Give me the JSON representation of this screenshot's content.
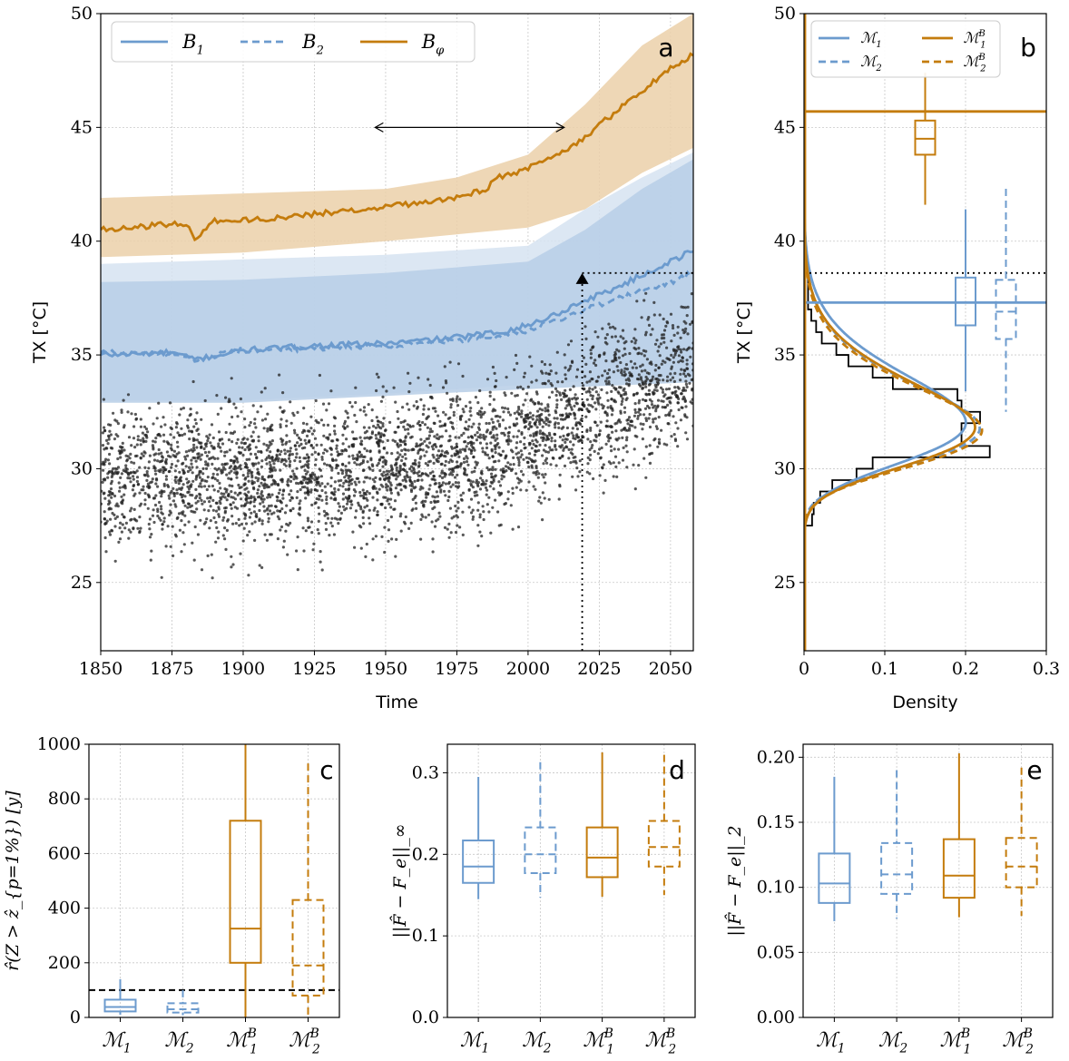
{
  "colors": {
    "blue": "#6c9bce",
    "orange": "#c47c0d",
    "blue_fill": "#b7cee6",
    "blue_fill_light": "#d6e3f1",
    "orange_fill": "#ebd0a9",
    "black": "#000000"
  },
  "chart_data": [
    {
      "id": "a",
      "type": "line",
      "panel_letter": "a",
      "xlabel": "Time",
      "ylabel": "TX [°C]",
      "xlim": [
        1850,
        2058
      ],
      "ylim": [
        22,
        50
      ],
      "xticks": [
        1850,
        1875,
        1900,
        1925,
        1950,
        1975,
        2000,
        2025,
        2050
      ],
      "yticks": [
        25,
        30,
        35,
        40,
        45,
        50
      ],
      "legend": {
        "placement": "top-left",
        "entries": [
          "B_1",
          "B_2",
          "B_φ"
        ]
      },
      "series": [
        {
          "name": "B_1",
          "style": "solid",
          "color": "blue",
          "points": [
            [
              1850,
              35.0
            ],
            [
              1875,
              35.1
            ],
            [
              1883,
              34.8
            ],
            [
              1900,
              35.2
            ],
            [
              1925,
              35.4
            ],
            [
              1950,
              35.5
            ],
            [
              1970,
              35.7
            ],
            [
              1990,
              36.0
            ],
            [
              2000,
              36.3
            ],
            [
              2010,
              36.8
            ],
            [
              2020,
              37.4
            ],
            [
              2030,
              37.9
            ],
            [
              2040,
              38.5
            ],
            [
              2050,
              39.1
            ],
            [
              2058,
              39.6
            ]
          ]
        },
        {
          "name": "B_2",
          "style": "dashed",
          "color": "blue",
          "points": [
            [
              1850,
              35.1
            ],
            [
              1875,
              35.1
            ],
            [
              1883,
              34.8
            ],
            [
              1900,
              35.2
            ],
            [
              1925,
              35.3
            ],
            [
              1950,
              35.4
            ],
            [
              1970,
              35.6
            ],
            [
              1990,
              35.8
            ],
            [
              2000,
              36.1
            ],
            [
              2010,
              36.5
            ],
            [
              2020,
              37.0
            ],
            [
              2030,
              37.4
            ],
            [
              2040,
              37.8
            ],
            [
              2050,
              38.2
            ],
            [
              2058,
              38.6
            ]
          ]
        },
        {
          "name": "B_φ",
          "style": "solid",
          "color": "orange",
          "points": [
            [
              1850,
              40.5
            ],
            [
              1870,
              40.7
            ],
            [
              1880,
              40.8
            ],
            [
              1883,
              40.0
            ],
            [
              1890,
              40.9
            ],
            [
              1900,
              40.9
            ],
            [
              1925,
              41.2
            ],
            [
              1950,
              41.5
            ],
            [
              1975,
              41.9
            ],
            [
              1985,
              42.3
            ],
            [
              1990,
              42.8
            ],
            [
              2000,
              43.2
            ],
            [
              2010,
              43.7
            ],
            [
              2020,
              44.6
            ],
            [
              2030,
              45.6
            ],
            [
              2040,
              46.6
            ],
            [
              2050,
              47.6
            ],
            [
              2058,
              48.2
            ]
          ]
        }
      ],
      "bands": [
        {
          "color": "orange_fill",
          "lower": [
            [
              1850,
              39.3
            ],
            [
              1900,
              39.5
            ],
            [
              1950,
              40.0
            ],
            [
              1975,
              40.3
            ],
            [
              2000,
              40.6
            ],
            [
              2020,
              41.4
            ],
            [
              2040,
              43.0
            ],
            [
              2058,
              44.1
            ]
          ],
          "upper": [
            [
              1850,
              41.9
            ],
            [
              1900,
              42.1
            ],
            [
              1950,
              42.3
            ],
            [
              1975,
              42.8
            ],
            [
              2000,
              43.8
            ],
            [
              2020,
              46.0
            ],
            [
              2040,
              48.6
            ],
            [
              2058,
              50.0
            ]
          ]
        },
        {
          "color": "blue_fill_light",
          "lower": [
            [
              1850,
              33.0
            ],
            [
              1900,
              33.0
            ],
            [
              1950,
              33.3
            ],
            [
              2000,
              33.7
            ],
            [
              2058,
              34.1
            ]
          ],
          "upper": [
            [
              1850,
              39.0
            ],
            [
              1900,
              39.2
            ],
            [
              1950,
              39.4
            ],
            [
              2000,
              39.8
            ],
            [
              2020,
              41.4
            ],
            [
              2040,
              42.8
            ],
            [
              2058,
              43.9
            ]
          ]
        },
        {
          "color": "blue_fill",
          "lower": [
            [
              1850,
              32.9
            ],
            [
              1900,
              32.9
            ],
            [
              1950,
              33.2
            ],
            [
              2000,
              33.5
            ],
            [
              2058,
              33.8
            ]
          ],
          "upper": [
            [
              1850,
              38.2
            ],
            [
              1900,
              38.3
            ],
            [
              1950,
              38.6
            ],
            [
              2000,
              39.1
            ],
            [
              2020,
              40.5
            ],
            [
              2040,
              42.3
            ],
            [
              2058,
              43.6
            ]
          ]
        }
      ],
      "scatter": {
        "color": "black",
        "x_range": [
          1850,
          2058
        ],
        "trend": [
          [
            1850,
            29.5
          ],
          [
            1950,
            30.0
          ],
          [
            1980,
            30.5
          ],
          [
            2000,
            31.5
          ],
          [
            2020,
            32.5
          ],
          [
            2058,
            34.5
          ]
        ],
        "spread": 2.2,
        "count": 3500
      },
      "annotations": {
        "arrow_y": 45,
        "arrow_x": [
          1946,
          2013
        ],
        "vline_x": 2019,
        "vline_y": [
          22,
          38.6
        ],
        "hline_y": 38.6,
        "hline_x": [
          2019,
          2058
        ]
      }
    },
    {
      "id": "b",
      "type": "density",
      "panel_letter": "b",
      "xlabel": "Density",
      "ylabel": "TX [°C]",
      "xlim": [
        0,
        0.3
      ],
      "ylim": [
        22,
        50
      ],
      "xticks": [
        0,
        0.1,
        0.2,
        0.3
      ],
      "xtick_labels": [
        "0",
        "0.1",
        "0.2",
        "0.3"
      ],
      "yticks": [
        25,
        30,
        35,
        40,
        45,
        50
      ],
      "legend": {
        "placement": "top-left",
        "entries": [
          "M_1",
          "M_2",
          "M_1^B",
          "M_2^B"
        ]
      },
      "histogram": [
        [
          27.5,
          28.0,
          0.01
        ],
        [
          28.0,
          28.5,
          0.012
        ],
        [
          28.5,
          29.0,
          0.02
        ],
        [
          29.0,
          29.5,
          0.035
        ],
        [
          29.5,
          30.0,
          0.065
        ],
        [
          30.0,
          30.5,
          0.085
        ],
        [
          30.5,
          31.0,
          0.23
        ],
        [
          31.0,
          31.5,
          0.195
        ],
        [
          31.5,
          32.0,
          0.195
        ],
        [
          32.0,
          32.5,
          0.218
        ],
        [
          32.5,
          33.0,
          0.195
        ],
        [
          33.0,
          33.5,
          0.19
        ],
        [
          33.5,
          34.0,
          0.11
        ],
        [
          34.0,
          34.5,
          0.085
        ],
        [
          34.5,
          35.0,
          0.055
        ],
        [
          35.0,
          35.5,
          0.04
        ],
        [
          35.5,
          36.0,
          0.022
        ],
        [
          36.0,
          36.5,
          0.015
        ],
        [
          36.5,
          37.0,
          0.009
        ],
        [
          37.0,
          38.6,
          0.005
        ]
      ],
      "densities": [
        {
          "name": "M_1",
          "color": "blue",
          "style": "solid",
          "mu": 31.8,
          "sigma": 1.85,
          "xi": -0.12
        },
        {
          "name": "M_2",
          "color": "blue",
          "style": "dashed",
          "mu": 31.6,
          "sigma": 1.7,
          "xi": -0.1
        },
        {
          "name": "M_1^B",
          "color": "orange",
          "style": "solid",
          "mu": 31.6,
          "sigma": 1.75,
          "xi": -0.12
        },
        {
          "name": "M_2^B",
          "color": "orange",
          "style": "dashed",
          "mu": 31.5,
          "sigma": 1.68,
          "xi": -0.11
        }
      ],
      "hlines": [
        {
          "y": 45.7,
          "color": "orange"
        },
        {
          "y": 37.3,
          "color": "blue"
        }
      ],
      "dotted_hline_y": 38.6,
      "boxes": [
        {
          "name": "M_1",
          "x": 0.2,
          "color": "blue",
          "style": "solid",
          "wlo": 33.4,
          "q1": 36.3,
          "med": 37.3,
          "q3": 38.4,
          "whi": 41.4
        },
        {
          "name": "M_2",
          "x": 0.25,
          "color": "blue",
          "style": "dashed",
          "wlo": 32.5,
          "q1": 35.7,
          "med": 36.9,
          "q3": 38.3,
          "whi": 42.3
        },
        {
          "name": "M_1^B",
          "x": 0.15,
          "color": "orange",
          "style": "solid",
          "wlo": 41.6,
          "q1": 43.8,
          "med": 44.5,
          "q3": 45.3,
          "whi": 47.4
        }
      ]
    },
    {
      "id": "c",
      "type": "box",
      "panel_letter": "c",
      "ylabel": "r̂(Z > ẑ_{p=1%}) [y]",
      "ylim": [
        0,
        1000
      ],
      "yticks": [
        0,
        200,
        400,
        600,
        800,
        1000
      ],
      "categories": [
        "M_1",
        "M_2",
        "M_1^B",
        "M_2^B"
      ],
      "reference_hline": 100,
      "boxes": [
        {
          "color": "blue",
          "style": "solid",
          "wlo": 10,
          "q1": 22,
          "med": 38,
          "q3": 65,
          "whi": 140
        },
        {
          "color": "blue",
          "style": "dashed",
          "wlo": 8,
          "q1": 18,
          "med": 30,
          "q3": 52,
          "whi": 100
        },
        {
          "color": "orange",
          "style": "solid",
          "wlo": 0,
          "q1": 200,
          "med": 325,
          "q3": 720,
          "whi": 1000
        },
        {
          "color": "orange",
          "style": "dashed",
          "wlo": 5,
          "q1": 80,
          "med": 190,
          "q3": 430,
          "whi": 930
        }
      ]
    },
    {
      "id": "d",
      "type": "box",
      "panel_letter": "d",
      "ylabel": "||F̂ − F_e||_∞",
      "ylim": [
        0,
        0.335
      ],
      "yticks": [
        0.0,
        0.1,
        0.2,
        0.3
      ],
      "ytick_labels": [
        "0.0",
        "0.1",
        "0.2",
        "0.3"
      ],
      "categories": [
        "M_1",
        "M_2",
        "M_1^B",
        "M_2^B"
      ],
      "boxes": [
        {
          "color": "blue",
          "style": "solid",
          "wlo": 0.145,
          "q1": 0.165,
          "med": 0.185,
          "q3": 0.217,
          "whi": 0.295
        },
        {
          "color": "blue",
          "style": "dashed",
          "wlo": 0.147,
          "q1": 0.177,
          "med": 0.2,
          "q3": 0.233,
          "whi": 0.313
        },
        {
          "color": "orange",
          "style": "solid",
          "wlo": 0.148,
          "q1": 0.172,
          "med": 0.196,
          "q3": 0.233,
          "whi": 0.325
        },
        {
          "color": "orange",
          "style": "dashed",
          "wlo": 0.15,
          "q1": 0.185,
          "med": 0.209,
          "q3": 0.241,
          "whi": 0.322
        }
      ]
    },
    {
      "id": "e",
      "type": "box",
      "panel_letter": "e",
      "ylabel": "||F̂ − F_e||_2",
      "ylim": [
        0,
        0.21
      ],
      "yticks": [
        0.0,
        0.05,
        0.1,
        0.15,
        0.2
      ],
      "ytick_labels": [
        "0.00",
        "0.05",
        "0.10",
        "0.15",
        "0.20"
      ],
      "categories": [
        "M_1",
        "M_2",
        "M_1^B",
        "M_2^B"
      ],
      "boxes": [
        {
          "color": "blue",
          "style": "solid",
          "wlo": 0.074,
          "q1": 0.088,
          "med": 0.103,
          "q3": 0.126,
          "whi": 0.185
        },
        {
          "color": "blue",
          "style": "dashed",
          "wlo": 0.076,
          "q1": 0.095,
          "med": 0.11,
          "q3": 0.134,
          "whi": 0.19
        },
        {
          "color": "orange",
          "style": "solid",
          "wlo": 0.077,
          "q1": 0.092,
          "med": 0.109,
          "q3": 0.137,
          "whi": 0.203
        },
        {
          "color": "orange",
          "style": "dashed",
          "wlo": 0.078,
          "q1": 0.1,
          "med": 0.116,
          "q3": 0.138,
          "whi": 0.192
        }
      ]
    }
  ]
}
